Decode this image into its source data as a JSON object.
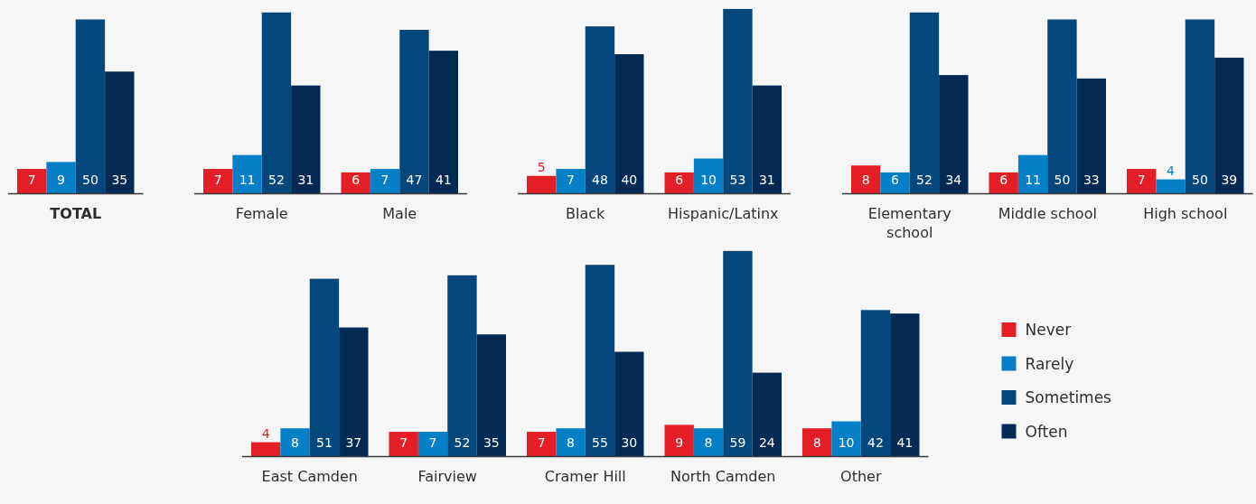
{
  "chart_data": [
    {
      "type": "bar",
      "categories": [
        "TOTAL"
      ],
      "series": [
        {
          "color": "#e31e26",
          "values": [
            7
          ]
        },
        {
          "color": "#0580c8",
          "values": [
            9
          ]
        },
        {
          "color": "#03477c",
          "values": [
            50
          ]
        },
        {
          "color": "#022a54",
          "values": [
            35
          ]
        }
      ],
      "data_labels": true
    },
    {
      "type": "bar",
      "categories": [
        "Female",
        "Male"
      ],
      "series": [
        {
          "color": "#e31e26",
          "values": [
            7,
            6
          ]
        },
        {
          "color": "#0580c8",
          "values": [
            11,
            7
          ]
        },
        {
          "color": "#03477c",
          "values": [
            52,
            47
          ]
        },
        {
          "color": "#022a54",
          "values": [
            31,
            41
          ]
        }
      ],
      "data_labels": true
    },
    {
      "type": "bar",
      "categories": [
        "Black",
        "Hispanic/Latinx"
      ],
      "series": [
        {
          "color": "#e31e26",
          "values": [
            5,
            6
          ]
        },
        {
          "color": "#0580c8",
          "values": [
            7,
            10
          ]
        },
        {
          "color": "#03477c",
          "values": [
            48,
            53
          ]
        },
        {
          "color": "#022a54",
          "values": [
            40,
            31
          ]
        }
      ],
      "data_labels": true
    },
    {
      "type": "bar",
      "categories": [
        "Elementary school",
        "Middle school",
        "High school"
      ],
      "series": [
        {
          "color": "#e31e26",
          "values": [
            8,
            6,
            7
          ]
        },
        {
          "color": "#0580c8",
          "values": [
            6,
            11,
            4
          ]
        },
        {
          "color": "#03477c",
          "values": [
            52,
            50,
            50
          ]
        },
        {
          "color": "#022a54",
          "values": [
            34,
            33,
            39
          ]
        }
      ],
      "data_labels": true
    },
    {
      "type": "bar",
      "categories": [
        "East Camden",
        "Fairview",
        "Cramer Hill",
        "North Camden",
        "Other"
      ],
      "series": [
        {
          "name": "Never",
          "color": "#e31e26",
          "values": [
            4,
            7,
            7,
            9,
            8
          ]
        },
        {
          "name": "Rarely",
          "color": "#0580c8",
          "values": [
            8,
            7,
            8,
            8,
            10
          ]
        },
        {
          "name": "Sometimes",
          "color": "#03477c",
          "values": [
            51,
            52,
            55,
            59,
            42
          ]
        },
        {
          "name": "Often",
          "color": "#022a54",
          "values": [
            37,
            35,
            30,
            24,
            41
          ]
        }
      ],
      "data_labels": true,
      "legend": "right"
    }
  ]
}
